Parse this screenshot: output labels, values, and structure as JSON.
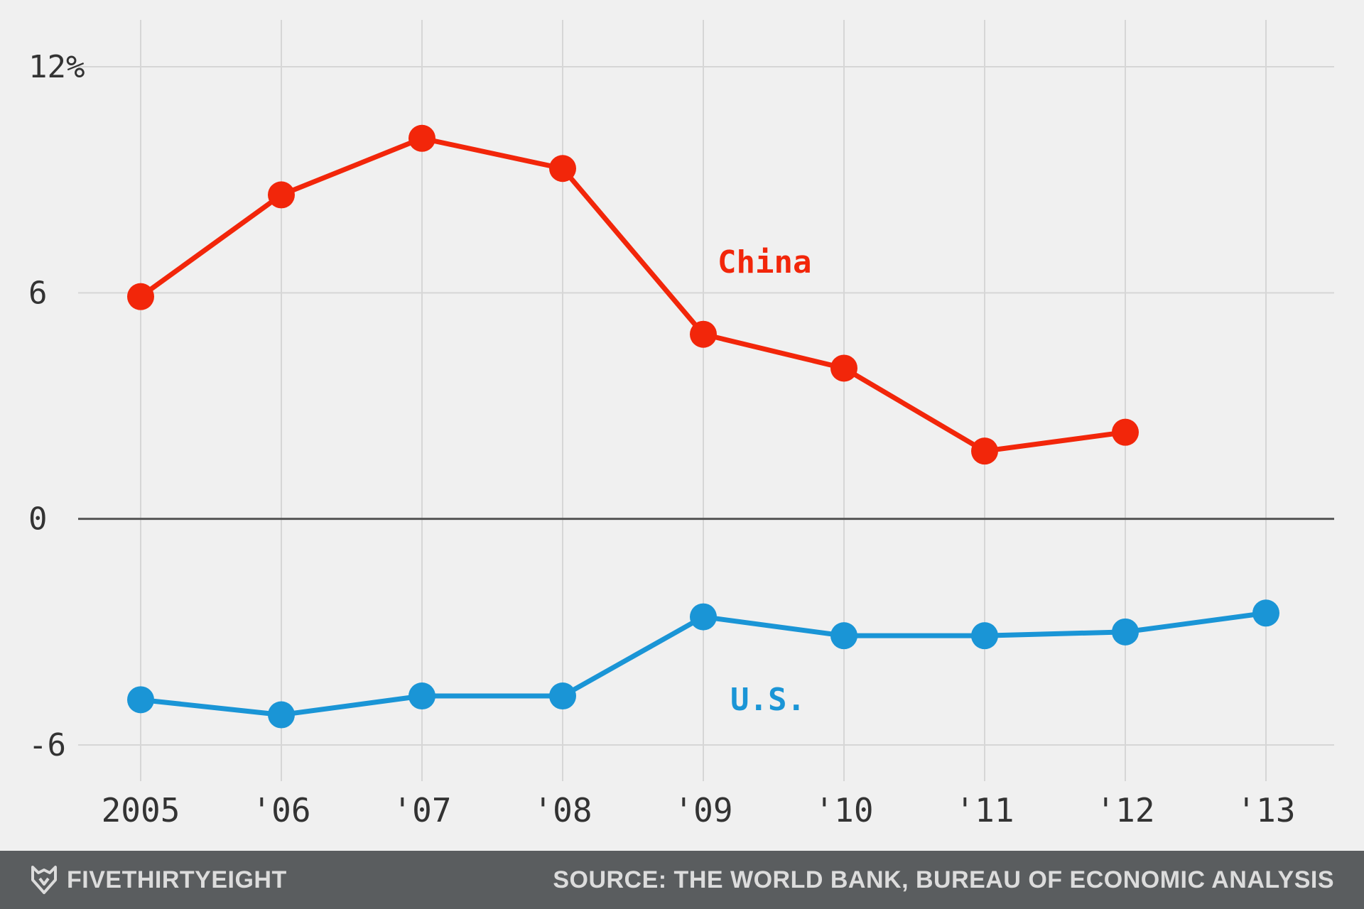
{
  "chart_data": {
    "type": "line",
    "x": [
      "2005",
      "'06",
      "'07",
      "'08",
      "'09",
      "'10",
      "'11",
      "'12",
      "'13"
    ],
    "ylim": [
      -7.2,
      13.2
    ],
    "yticks": [
      -6,
      0,
      6,
      12
    ],
    "ytick_labels": [
      "-6",
      "0",
      "6",
      "12%"
    ],
    "grid": true,
    "series": [
      {
        "name": "China",
        "color": "#f2260a",
        "values": [
          5.9,
          8.6,
          10.1,
          9.3,
          4.9,
          4.0,
          1.8,
          2.3,
          null
        ]
      },
      {
        "name": "U.S.",
        "color": "#1a95d6",
        "values": [
          -4.8,
          -5.2,
          -4.7,
          -4.7,
          -2.6,
          -3.1,
          -3.1,
          -3.0,
          -2.5
        ]
      }
    ]
  },
  "footer": {
    "brand": "FIVETHIRTYEIGHT",
    "source": "SOURCE: THE WORLD BANK, BUREAU OF ECONOMIC ANALYSIS"
  },
  "colors": {
    "background": "#f0f0f0",
    "footer_background": "#5a5d5f",
    "grid": "#d6d6d6",
    "zero_line": "#555555",
    "tick_text": "#333333"
  }
}
